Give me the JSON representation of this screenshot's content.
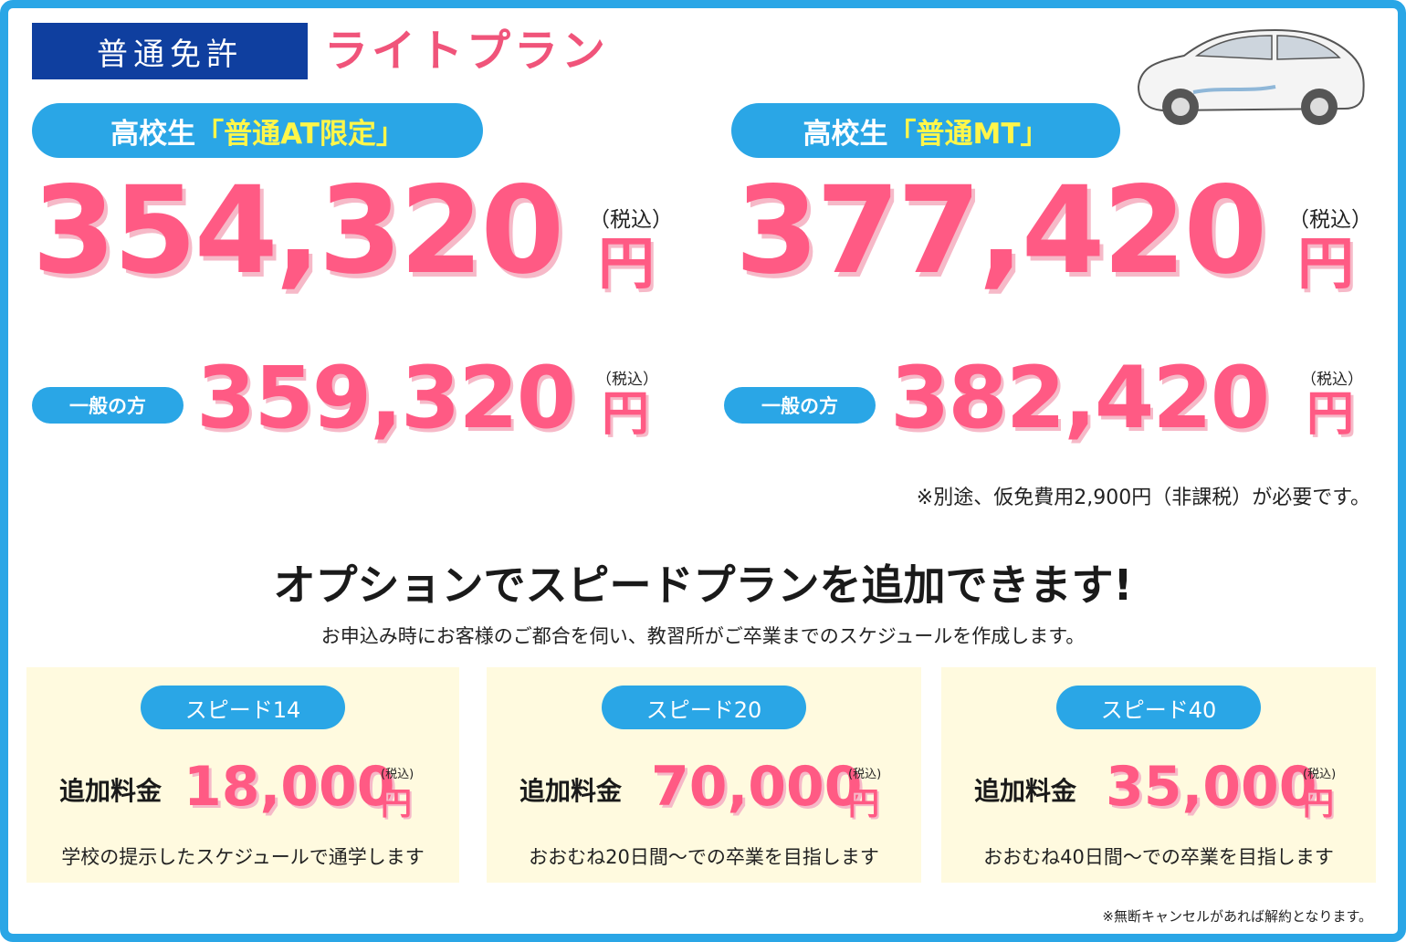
{
  "header": {
    "license_label": "普通免許",
    "plan_title": "ライトプラン"
  },
  "plans": {
    "at": {
      "hs_prefix": "高校生",
      "hs_type": "「普通AT限定」",
      "hs_price": "354,320",
      "yen": "円",
      "tax": "（税込）",
      "general_label": "一般の方",
      "general_price": "359,320"
    },
    "mt": {
      "hs_prefix": "高校生",
      "hs_type": "「普通MT」",
      "hs_price": "377,420",
      "yen": "円",
      "tax": "（税込）",
      "general_label": "一般の方",
      "general_price": "382,420"
    }
  },
  "note_top": "※別途、仮免費用2,900円（非課税）が必要です。",
  "option": {
    "heading": "オプションでスピードプランを追加できます!",
    "subtext": "お申込み時にお客様のご都合を伺い、教習所がご卒業までのスケジュールを作成します。",
    "fee_label": "追加料金",
    "tax": "(税込)",
    "yen": "円",
    "cards": [
      {
        "name": "スピード14",
        "price": "18,000",
        "desc": "学校の提示したスケジュールで通学します"
      },
      {
        "name": "スピード20",
        "price": "70,000",
        "desc": "おおむね20日間～での卒業を目指します"
      },
      {
        "name": "スピード40",
        "price": "35,000",
        "desc": "おおむね40日間～での卒業を目指します"
      }
    ]
  },
  "note_bottom": "※無断キャンセルがあれば解約となります。",
  "colors": {
    "frame_blue": "#2aa6e6",
    "navy": "#0f3f9f",
    "pink": "#ff5a84",
    "highlight_yellow": "#fff64a",
    "card_bg": "#fffadf"
  },
  "icons": {
    "car": "car-illustration"
  }
}
